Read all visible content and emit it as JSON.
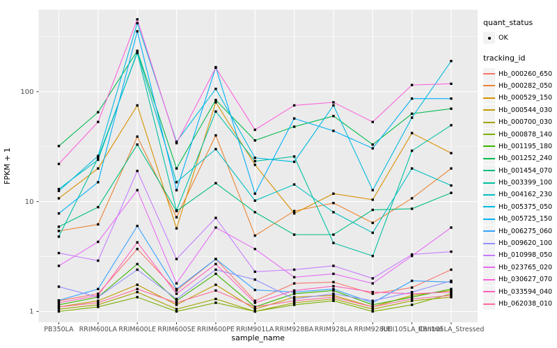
{
  "chart": {
    "xlabel": "sample_name",
    "ylabel": "FPKM + 1",
    "ytick_labels": [
      "1",
      "10",
      "100"
    ],
    "legend": {
      "quant_title": "quant_status",
      "quant_item_label": "OK",
      "tracking_title": "tracking_id"
    },
    "colors": {
      "panel_bg": "#EBEBEB",
      "grid": "#FFFFFF",
      "tick_text": "#4D4D4D",
      "axis_title_text": "#000000",
      "point": "#000000",
      "legend_key_bg": "#F2F2F2"
    }
  },
  "chart_data": {
    "type": "line",
    "xlabel": "sample_name",
    "ylabel": "FPKM + 1",
    "yscale": "log",
    "yticks": [
      1,
      10,
      100
    ],
    "ylim": [
      0.85,
      520
    ],
    "grid": true,
    "legend_position": "right",
    "point_marker": "black square, all points quant_status OK",
    "categories": [
      "PB350LA",
      "RRIM600LA",
      "RRIM600LE",
      "RRIM600SE",
      "RRIM600PE",
      "RRIM901LA",
      "RRIM928BA",
      "RRIM928LA",
      "RRIM928LE",
      "RRII105LA_Control",
      "RRII105LA_Stressed"
    ],
    "series": [
      {
        "name": "Hb_000260_650",
        "color": "#F8766D",
        "values": [
          1.25,
          1.45,
          3.7,
          1.55,
          3.0,
          1.25,
          1.8,
          1.85,
          1.45,
          1.65,
          2.4
        ]
      },
      {
        "name": "Hb_000282_050",
        "color": "#EA8331",
        "values": [
          5.4,
          6.2,
          39,
          7.2,
          40,
          4.9,
          8.2,
          9.7,
          6.4,
          10.7,
          20
        ]
      },
      {
        "name": "Hb_000529_150",
        "color": "#D89000",
        "values": [
          10.7,
          20,
          75,
          5.7,
          80,
          21.6,
          7.8,
          11.8,
          10.4,
          42,
          27.6
        ]
      },
      {
        "name": "Hb_000544_030",
        "color": "#C09B00",
        "values": [
          1.1,
          1.25,
          1.75,
          1.15,
          1.75,
          1.05,
          1.35,
          1.4,
          1.1,
          1.4,
          1.55
        ]
      },
      {
        "name": "Hb_000700_030",
        "color": "#A3A500",
        "values": [
          1.05,
          1.15,
          1.5,
          1.05,
          1.3,
          1.0,
          1.2,
          1.3,
          1.05,
          1.25,
          1.35
        ]
      },
      {
        "name": "Hb_000878_140",
        "color": "#7CAE00",
        "values": [
          1.0,
          1.1,
          1.35,
          1.0,
          1.2,
          1.0,
          1.15,
          1.25,
          1.0,
          1.15,
          1.45
        ]
      },
      {
        "name": "Hb_001195_180",
        "color": "#39B600",
        "values": [
          1.15,
          1.35,
          2.7,
          1.25,
          2.2,
          1.1,
          1.45,
          1.55,
          1.15,
          1.35,
          1.6
        ]
      },
      {
        "name": "Hb_001252_240",
        "color": "#00BB4E",
        "values": [
          32,
          65,
          235,
          20,
          84,
          36,
          48,
          60,
          33,
          63,
          70
        ]
      },
      {
        "name": "Hb_001454_070",
        "color": "#00BF7D",
        "values": [
          5.9,
          8.9,
          33,
          8.2,
          14.7,
          8.0,
          5.0,
          5.0,
          8.4,
          8.6,
          12
        ]
      },
      {
        "name": "Hb_003399_100",
        "color": "#00C1A3",
        "values": [
          4.8,
          25,
          225,
          8.3,
          66,
          23.3,
          25.7,
          4.2,
          3.2,
          29,
          49.5
        ]
      },
      {
        "name": "Hb_004162_230",
        "color": "#00BFC4",
        "values": [
          13,
          24,
          230,
          15,
          30,
          10.2,
          14.3,
          8.0,
          5.2,
          20,
          14
        ]
      },
      {
        "name": "Hb_005375_050",
        "color": "#00BAE0",
        "values": [
          12.5,
          26,
          420,
          35,
          106,
          25,
          23,
          75,
          12.7,
          58,
          190
        ]
      },
      {
        "name": "Hb_005725_150",
        "color": "#00B0F6",
        "values": [
          7.8,
          15,
          354,
          12.7,
          167,
          11.8,
          57,
          44,
          30.5,
          86.5,
          86.5
        ]
      },
      {
        "name": "Hb_006275_060",
        "color": "#35A2FF",
        "values": [
          1.26,
          1.6,
          6.0,
          1.6,
          3.0,
          1.57,
          1.5,
          1.6,
          1.2,
          1.9,
          1.85
        ]
      },
      {
        "name": "Hb_009620_100",
        "color": "#9590FF",
        "values": [
          1.68,
          1.35,
          2.4,
          1.3,
          2.4,
          1.95,
          1.3,
          1.45,
          1.25,
          1.5,
          1.9
        ]
      },
      {
        "name": "Hb_010998_050",
        "color": "#C77CFF",
        "values": [
          3.4,
          2.9,
          19,
          3.0,
          7.1,
          2.3,
          2.4,
          2.6,
          2.0,
          3.3,
          3.5
        ]
      },
      {
        "name": "Hb_023765_020",
        "color": "#E76BF3",
        "values": [
          2.6,
          4.3,
          12.7,
          1.8,
          5.8,
          3.7,
          2.05,
          2.2,
          1.8,
          3.2,
          5.8
        ]
      },
      {
        "name": "Hb_030627_070",
        "color": "#FA62DB",
        "values": [
          22,
          53,
          455,
          34,
          165,
          45,
          75,
          80,
          53,
          115,
          118
        ]
      },
      {
        "name": "Hb_033594_040",
        "color": "#FF62BC",
        "values": [
          1.2,
          1.4,
          4.25,
          1.45,
          2.7,
          1.2,
          1.55,
          1.7,
          1.5,
          1.45,
          1.5
        ]
      },
      {
        "name": "Hb_062038_010",
        "color": "#FF6A98",
        "values": [
          1.1,
          1.2,
          1.6,
          1.2,
          1.55,
          1.1,
          1.25,
          1.35,
          1.1,
          1.3,
          1.4
        ]
      }
    ]
  }
}
